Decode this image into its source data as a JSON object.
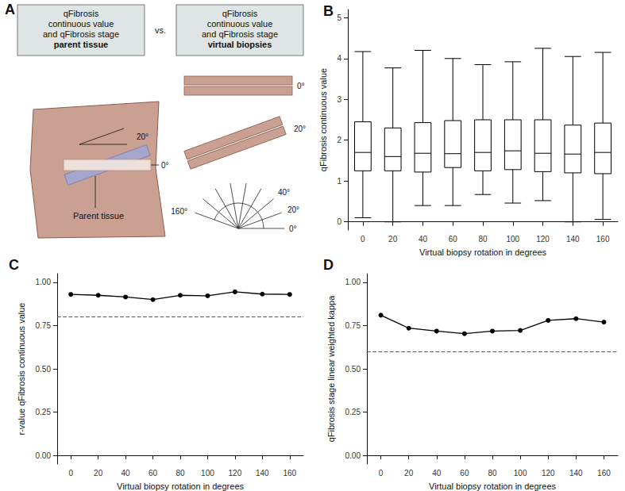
{
  "diagram": {
    "panel": "A",
    "boxes": [
      {
        "lines": [
          "qFibrosis",
          "continuous value",
          "and qFibrosis stage"
        ],
        "emphasis": "parent tissue"
      },
      {
        "lines": [
          "qFibrosis",
          "continuous value",
          "and qFibrosis stage"
        ],
        "emphasis": "virtual biopsies"
      }
    ],
    "separator": "vs.",
    "parent_labels": [
      "20°",
      "0°"
    ],
    "parent_caption": "Parent tissue",
    "biopsy_labels": [
      "0°",
      "20°"
    ],
    "fan_labels": [
      "0°",
      "20°",
      "40°",
      "160°"
    ]
  },
  "chart_data": [
    {
      "panel": "B",
      "type": "boxplot",
      "categories": [
        "0",
        "20",
        "40",
        "60",
        "80",
        "100",
        "120",
        "140",
        "160"
      ],
      "values": [
        [
          0.1,
          1.25,
          1.7,
          2.45,
          4.17
        ],
        [
          0.0,
          1.25,
          1.6,
          2.3,
          3.77
        ],
        [
          0.4,
          1.22,
          1.68,
          2.43,
          4.2
        ],
        [
          0.4,
          1.33,
          1.67,
          2.48,
          4.0
        ],
        [
          0.67,
          1.25,
          1.7,
          2.5,
          3.85
        ],
        [
          0.46,
          1.28,
          1.74,
          2.5,
          3.92
        ],
        [
          0.52,
          1.23,
          1.68,
          2.5,
          4.25
        ],
        [
          0.0,
          1.2,
          1.66,
          2.37,
          4.05
        ],
        [
          0.06,
          1.18,
          1.7,
          2.42,
          4.15
        ]
      ],
      "color": "#000000",
      "x_label": "Virtual biopsy rotation in degrees",
      "y_label": "qFibrosis continuous value",
      "ylim": [
        -0.2,
        5.2
      ],
      "yticks": [
        0,
        1,
        2,
        3,
        4,
        5
      ],
      "grid": false
    },
    {
      "panel": "C",
      "type": "line",
      "categories": [
        "0",
        "20",
        "40",
        "60",
        "80",
        "100",
        "120",
        "140",
        "160"
      ],
      "values": [
        0.93,
        0.925,
        0.915,
        0.9,
        0.925,
        0.922,
        0.945,
        0.932,
        0.93
      ],
      "color": "#000000",
      "marker": "circle",
      "line_style": "solid",
      "x_label": "Virtual biopsy rotation in degrees",
      "y_label": "r-value qFibrosis continuous value",
      "ylim": [
        -0.05,
        1.05
      ],
      "yticks": [
        {
          "value": 0,
          "label": "0.00"
        },
        {
          "value": 0.25,
          "label": "0.25"
        },
        {
          "value": 0.5,
          "label": "0.50"
        },
        {
          "value": 0.75,
          "label": "0.75"
        },
        {
          "value": 1,
          "label": "1.00"
        }
      ],
      "grid": false,
      "reference_line": {
        "value": 0.8,
        "color": "#c62828",
        "line_style": "dashed"
      }
    },
    {
      "panel": "D",
      "type": "line",
      "categories": [
        "0",
        "20",
        "40",
        "60",
        "80",
        "100",
        "120",
        "140",
        "160"
      ],
      "values": [
        0.81,
        0.735,
        0.718,
        0.703,
        0.718,
        0.722,
        0.78,
        0.79,
        0.77
      ],
      "color": "#000000",
      "marker": "circle",
      "line_style": "solid",
      "x_label": "Virtual biopsy rotation in degrees",
      "y_label": "qFibrosis stage linear weighted kappa",
      "ylim": [
        -0.05,
        1.05
      ],
      "yticks": [
        {
          "value": 0,
          "label": "0.00"
        },
        {
          "value": 0.25,
          "label": "0.25"
        },
        {
          "value": 0.5,
          "label": "0.50"
        },
        {
          "value": 0.75,
          "label": "0.75"
        },
        {
          "value": 1,
          "label": "1.00"
        }
      ],
      "grid": false,
      "reference_line": {
        "value": 0.6,
        "color": "#c62828",
        "line_style": "dashed"
      }
    }
  ]
}
